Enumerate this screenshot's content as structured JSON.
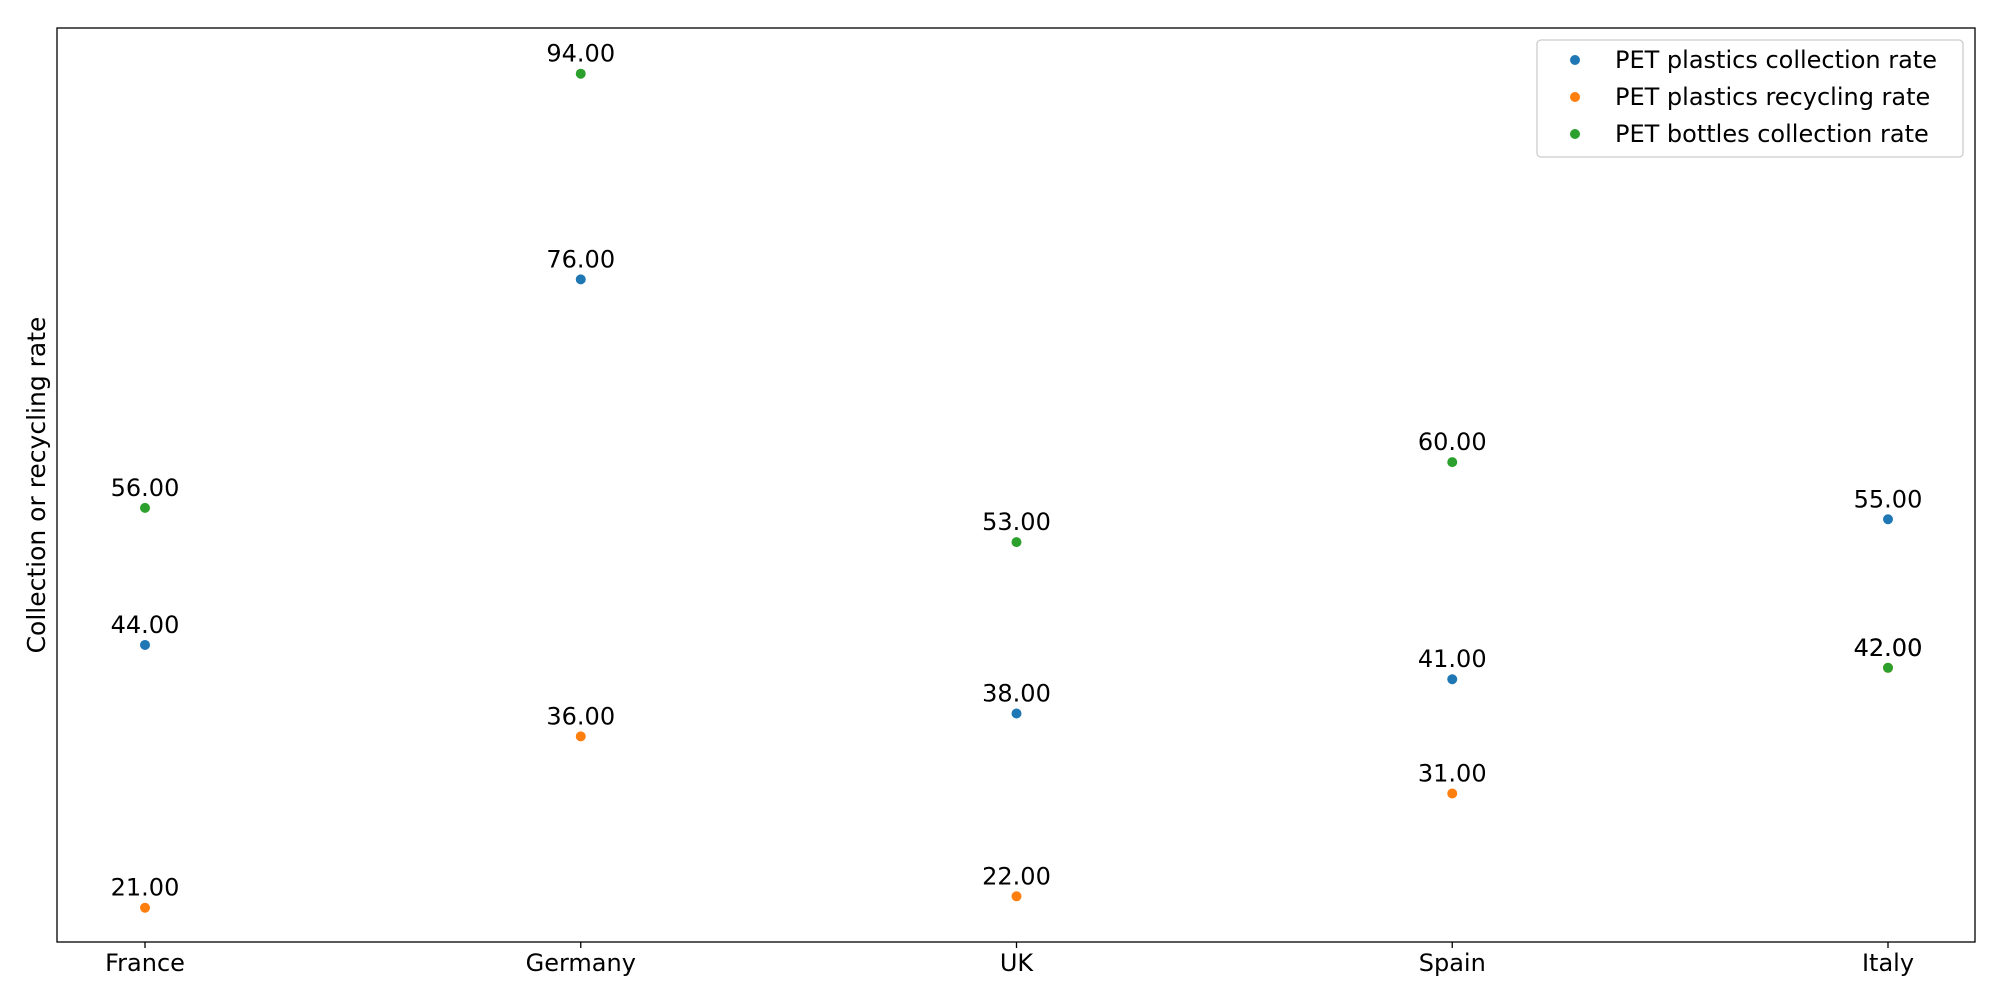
{
  "chart_data": {
    "type": "scatter",
    "title": "",
    "xlabel": "",
    "ylabel": "Collection or recycling rate",
    "categories": [
      "France",
      "Germany",
      "UK",
      "Spain",
      "Italy"
    ],
    "ylim": [
      18,
      98
    ],
    "grid": false,
    "show_y_ticks": false,
    "legend_position": "top-right",
    "series": [
      {
        "name": "PET plastics collection rate",
        "color": "#1f77b4",
        "values": [
          44,
          76,
          38,
          41,
          55
        ]
      },
      {
        "name": "PET plastics recycling rate",
        "color": "#ff7f0e",
        "values": [
          21,
          36,
          22,
          31,
          42
        ]
      },
      {
        "name": "PET bottles collection rate",
        "color": "#2ca02c",
        "values": [
          56,
          94,
          53,
          60,
          42
        ]
      }
    ],
    "value_labels": [
      [
        "44.00",
        "76.00",
        "38.00",
        "41.00",
        "55.00"
      ],
      [
        "21.00",
        "36.00",
        "22.00",
        "31.00",
        "42.00"
      ],
      [
        "56.00",
        "94.00",
        "53.00",
        "60.00",
        "42.00"
      ]
    ]
  }
}
